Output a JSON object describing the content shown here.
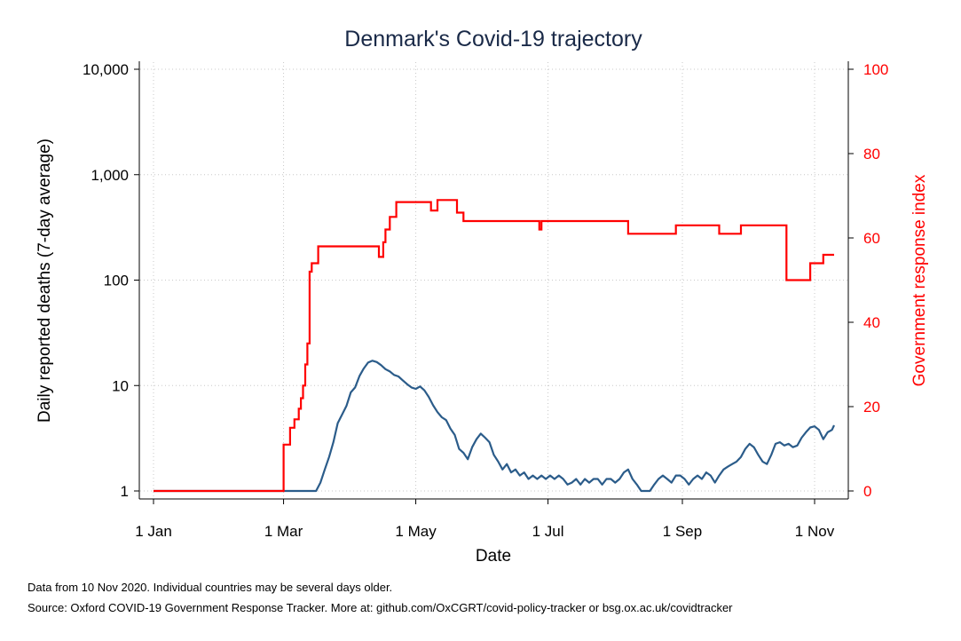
{
  "chart_data": {
    "type": "line",
    "title": "Denmark's Covid-19 trajectory",
    "xlabel": "Date",
    "ylabel_left": "Daily reported deaths (7-day average)",
    "ylabel_right": "Government response index",
    "x_ticks": [
      "1 Jan",
      "1 Mar",
      "1 May",
      "1 Jul",
      "1 Sep",
      "1 Nov"
    ],
    "x_tick_dates": [
      "2020-01-01",
      "2020-03-01",
      "2020-05-01",
      "2020-07-01",
      "2020-09-01",
      "2020-11-01"
    ],
    "xlim": [
      "2020-01-01",
      "2020-11-10"
    ],
    "y_left_scale": "log",
    "y_left_ticks": [
      1,
      10,
      100,
      1000,
      10000
    ],
    "y_left_tick_labels": [
      "1",
      "10",
      "100",
      "1,000",
      "10,000"
    ],
    "ylim_left": [
      1,
      10000
    ],
    "y_right_ticks": [
      0,
      20,
      40,
      60,
      80,
      100
    ],
    "y_right_tick_labels": [
      "0",
      "20",
      "40",
      "60",
      "80",
      "100"
    ],
    "ylim_right": [
      0,
      100
    ],
    "grid": true,
    "series": [
      {
        "axis": "left",
        "color": "#2b5c8a",
        "points": [
          [
            "2020-01-01",
            1
          ],
          [
            "2020-03-16",
            1
          ],
          [
            "2020-03-18",
            1.2
          ],
          [
            "2020-03-20",
            1.6
          ],
          [
            "2020-03-22",
            2.1
          ],
          [
            "2020-03-24",
            2.9
          ],
          [
            "2020-03-26",
            4.4
          ],
          [
            "2020-03-28",
            5.3
          ],
          [
            "2020-03-30",
            6.4
          ],
          [
            "2020-04-01",
            8.6
          ],
          [
            "2020-04-03",
            9.6
          ],
          [
            "2020-04-05",
            12.3
          ],
          [
            "2020-04-07",
            14.5
          ],
          [
            "2020-04-09",
            16.5
          ],
          [
            "2020-04-11",
            17.2
          ],
          [
            "2020-04-13",
            16.7
          ],
          [
            "2020-04-15",
            15.6
          ],
          [
            "2020-04-17",
            14.3
          ],
          [
            "2020-04-19",
            13.6
          ],
          [
            "2020-04-21",
            12.6
          ],
          [
            "2020-04-23",
            12.2
          ],
          [
            "2020-04-25",
            11.2
          ],
          [
            "2020-04-27",
            10.3
          ],
          [
            "2020-04-29",
            9.6
          ],
          [
            "2020-05-01",
            9.3
          ],
          [
            "2020-05-03",
            9.8
          ],
          [
            "2020-05-05",
            9.0
          ],
          [
            "2020-05-07",
            7.8
          ],
          [
            "2020-05-09",
            6.5
          ],
          [
            "2020-05-11",
            5.6
          ],
          [
            "2020-05-13",
            5.0
          ],
          [
            "2020-05-15",
            4.7
          ],
          [
            "2020-05-17",
            3.9
          ],
          [
            "2020-05-19",
            3.4
          ],
          [
            "2020-05-21",
            2.5
          ],
          [
            "2020-05-23",
            2.3
          ],
          [
            "2020-05-25",
            2.0
          ],
          [
            "2020-05-27",
            2.6
          ],
          [
            "2020-05-29",
            3.1
          ],
          [
            "2020-05-31",
            3.5
          ],
          [
            "2020-06-02",
            3.2
          ],
          [
            "2020-06-04",
            2.9
          ],
          [
            "2020-06-06",
            2.2
          ],
          [
            "2020-06-08",
            1.9
          ],
          [
            "2020-06-10",
            1.6
          ],
          [
            "2020-06-12",
            1.8
          ],
          [
            "2020-06-14",
            1.5
          ],
          [
            "2020-06-16",
            1.6
          ],
          [
            "2020-06-18",
            1.4
          ],
          [
            "2020-06-20",
            1.5
          ],
          [
            "2020-06-22",
            1.3
          ],
          [
            "2020-06-24",
            1.4
          ],
          [
            "2020-06-26",
            1.3
          ],
          [
            "2020-06-28",
            1.4
          ],
          [
            "2020-06-30",
            1.3
          ],
          [
            "2020-07-02",
            1.4
          ],
          [
            "2020-07-04",
            1.3
          ],
          [
            "2020-07-06",
            1.4
          ],
          [
            "2020-07-08",
            1.3
          ],
          [
            "2020-07-10",
            1.15
          ],
          [
            "2020-07-12",
            1.2
          ],
          [
            "2020-07-14",
            1.3
          ],
          [
            "2020-07-16",
            1.15
          ],
          [
            "2020-07-18",
            1.3
          ],
          [
            "2020-07-20",
            1.2
          ],
          [
            "2020-07-22",
            1.3
          ],
          [
            "2020-07-24",
            1.3
          ],
          [
            "2020-07-26",
            1.15
          ],
          [
            "2020-07-28",
            1.3
          ],
          [
            "2020-07-30",
            1.3
          ],
          [
            "2020-08-01",
            1.2
          ],
          [
            "2020-08-03",
            1.3
          ],
          [
            "2020-08-05",
            1.5
          ],
          [
            "2020-08-07",
            1.6
          ],
          [
            "2020-08-09",
            1.3
          ],
          [
            "2020-08-11",
            1.15
          ],
          [
            "2020-08-13",
            1.0
          ],
          [
            "2020-08-15",
            1.0
          ],
          [
            "2020-08-17",
            1.0
          ],
          [
            "2020-08-19",
            1.15
          ],
          [
            "2020-08-21",
            1.3
          ],
          [
            "2020-08-23",
            1.4
          ],
          [
            "2020-08-25",
            1.3
          ],
          [
            "2020-08-27",
            1.2
          ],
          [
            "2020-08-29",
            1.4
          ],
          [
            "2020-08-31",
            1.4
          ],
          [
            "2020-09-02",
            1.3
          ],
          [
            "2020-09-04",
            1.15
          ],
          [
            "2020-09-06",
            1.3
          ],
          [
            "2020-09-08",
            1.4
          ],
          [
            "2020-09-10",
            1.3
          ],
          [
            "2020-09-12",
            1.5
          ],
          [
            "2020-09-14",
            1.4
          ],
          [
            "2020-09-16",
            1.2
          ],
          [
            "2020-09-18",
            1.4
          ],
          [
            "2020-09-20",
            1.6
          ],
          [
            "2020-09-22",
            1.7
          ],
          [
            "2020-09-24",
            1.8
          ],
          [
            "2020-09-26",
            1.9
          ],
          [
            "2020-09-28",
            2.1
          ],
          [
            "2020-09-30",
            2.5
          ],
          [
            "2020-10-02",
            2.8
          ],
          [
            "2020-10-04",
            2.6
          ],
          [
            "2020-10-06",
            2.2
          ],
          [
            "2020-10-08",
            1.9
          ],
          [
            "2020-10-10",
            1.8
          ],
          [
            "2020-10-12",
            2.2
          ],
          [
            "2020-10-14",
            2.8
          ],
          [
            "2020-10-16",
            2.9
          ],
          [
            "2020-10-18",
            2.7
          ],
          [
            "2020-10-20",
            2.8
          ],
          [
            "2020-10-22",
            2.6
          ],
          [
            "2020-10-24",
            2.7
          ],
          [
            "2020-10-26",
            3.2
          ],
          [
            "2020-10-28",
            3.6
          ],
          [
            "2020-10-30",
            4.0
          ],
          [
            "2020-11-01",
            4.1
          ],
          [
            "2020-11-03",
            3.8
          ],
          [
            "2020-11-05",
            3.1
          ],
          [
            "2020-11-07",
            3.6
          ],
          [
            "2020-11-09",
            3.8
          ],
          [
            "2020-11-10",
            4.2
          ]
        ]
      },
      {
        "axis": "right",
        "color": "#ff0000",
        "step": true,
        "points": [
          [
            "2020-01-01",
            0
          ],
          [
            "2020-02-28",
            0
          ],
          [
            "2020-03-01",
            11
          ],
          [
            "2020-03-04",
            15
          ],
          [
            "2020-03-06",
            17
          ],
          [
            "2020-03-08",
            19.5
          ],
          [
            "2020-03-09",
            22
          ],
          [
            "2020-03-10",
            25
          ],
          [
            "2020-03-11",
            30
          ],
          [
            "2020-03-12",
            35
          ],
          [
            "2020-03-13",
            52
          ],
          [
            "2020-03-14",
            54
          ],
          [
            "2020-03-17",
            58
          ],
          [
            "2020-04-14",
            55.5
          ],
          [
            "2020-04-16",
            59
          ],
          [
            "2020-04-17",
            62
          ],
          [
            "2020-04-19",
            65
          ],
          [
            "2020-04-22",
            68.5
          ],
          [
            "2020-05-08",
            66.5
          ],
          [
            "2020-05-11",
            69
          ],
          [
            "2020-05-20",
            66
          ],
          [
            "2020-05-23",
            64
          ],
          [
            "2020-06-27",
            62
          ],
          [
            "2020-06-28",
            64
          ],
          [
            "2020-08-07",
            61
          ],
          [
            "2020-08-29",
            63
          ],
          [
            "2020-09-18",
            61
          ],
          [
            "2020-09-28",
            63
          ],
          [
            "2020-10-19",
            50
          ],
          [
            "2020-10-30",
            54
          ],
          [
            "2020-11-05",
            56
          ],
          [
            "2020-11-10",
            56
          ]
        ]
      }
    ]
  },
  "footnote": "Data from 10 Nov 2020. Individual countries may be several days older.",
  "source": "Source: Oxford COVID-19 Government Response Tracker. More at: github.com/OxCGRT/covid-policy-tracker or bsg.ox.ac.uk/covidtracker"
}
